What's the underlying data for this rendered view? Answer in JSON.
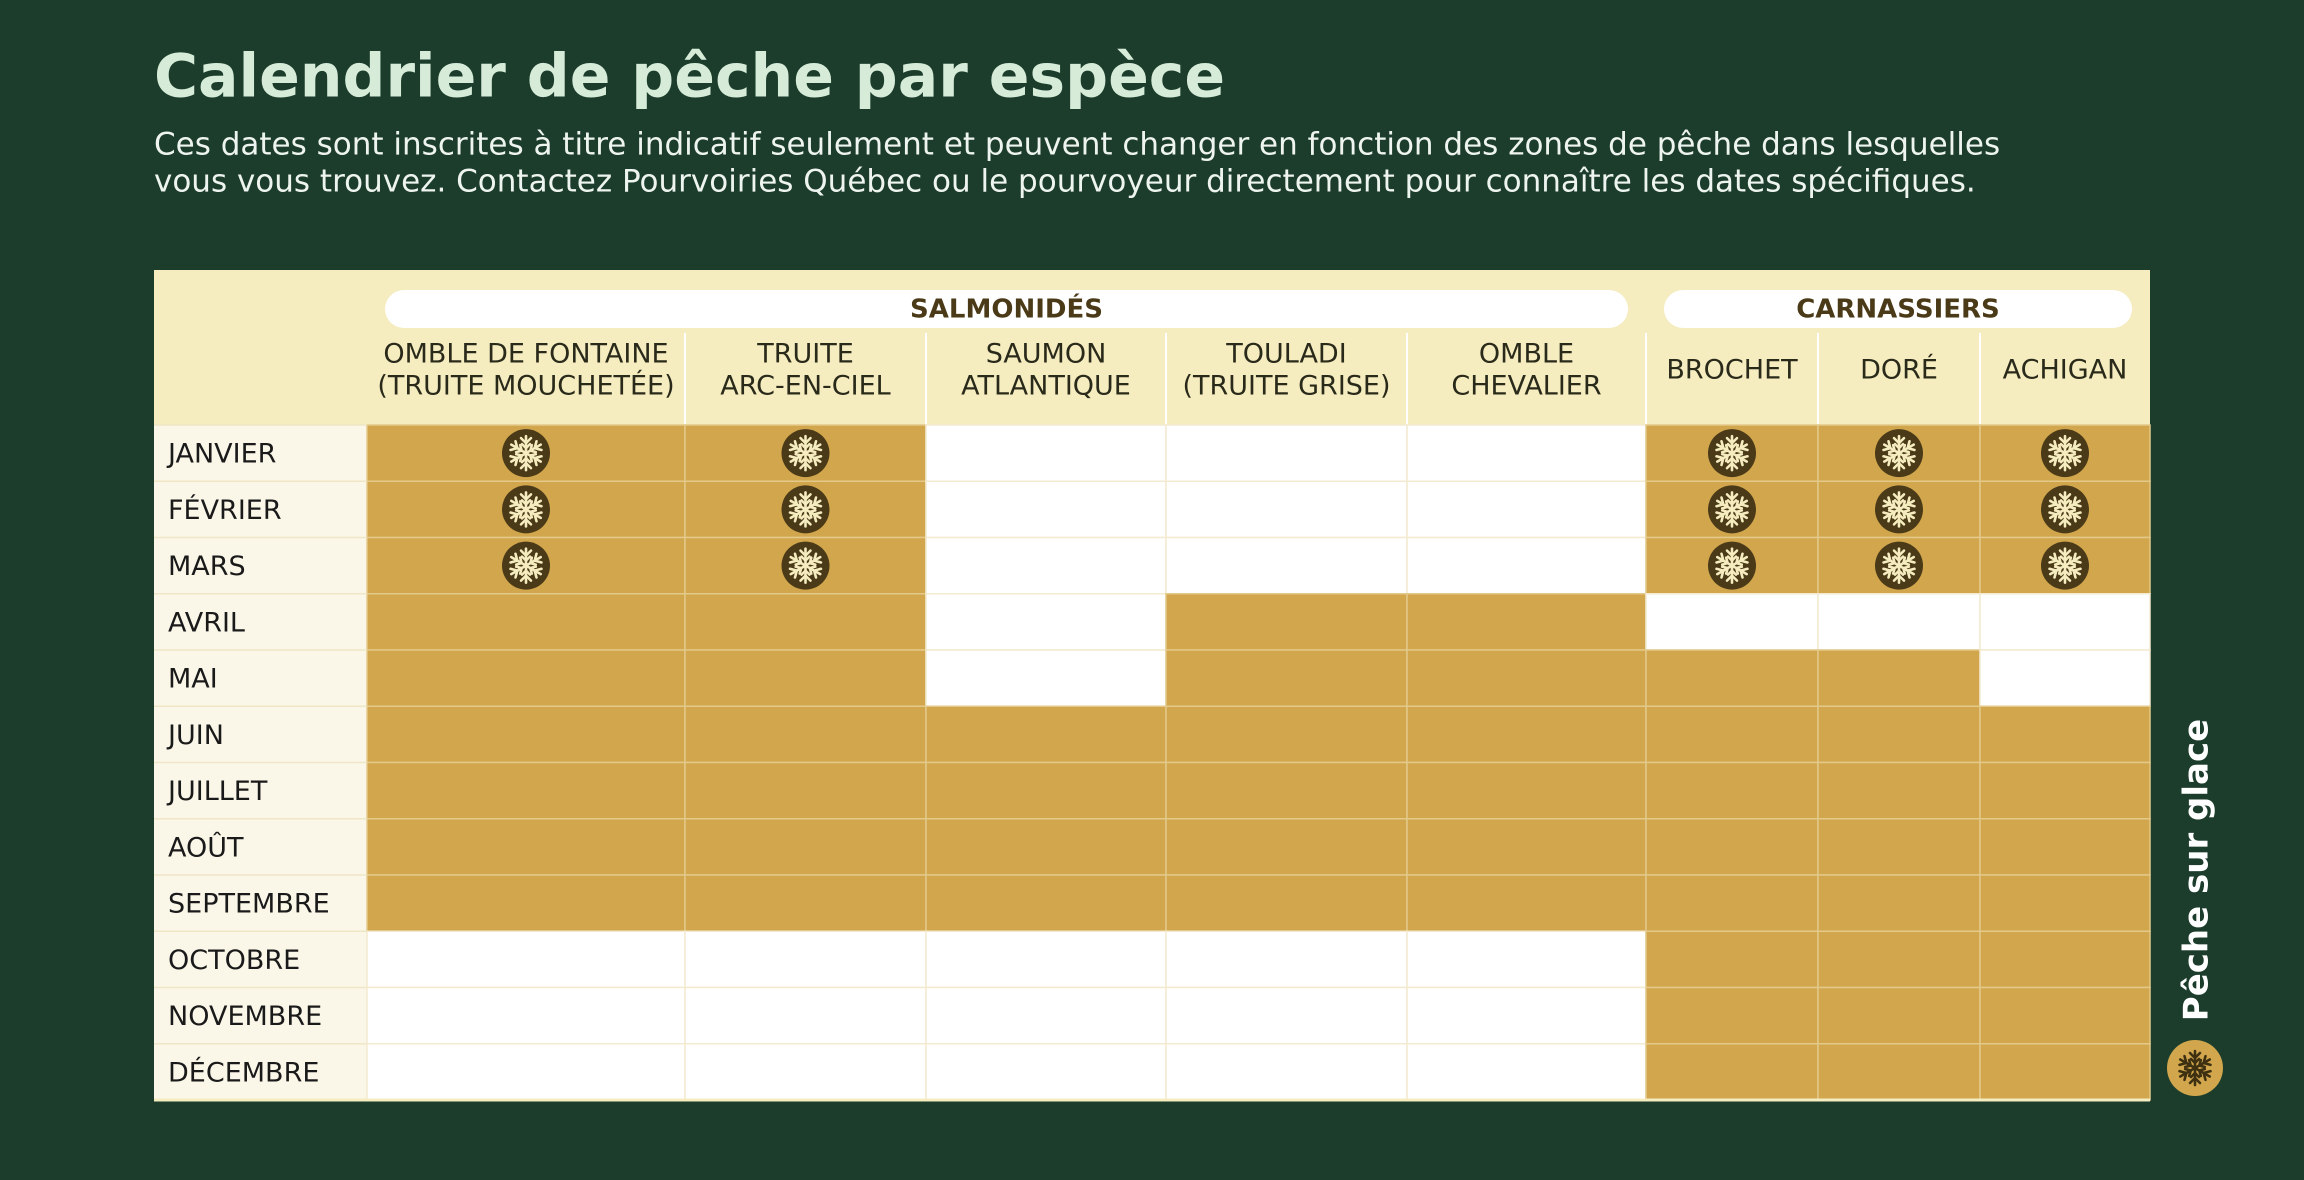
{
  "header": {
    "title": "Calendrier de pêche par espèce",
    "description": [
      "Ces dates sont inscrites à titre indicatif seulement et peuvent changer en fonction des zones de pêche dans lesquelles",
      "vous vous trouvez. Contactez Pourvoiries Québec ou le pourvoyeur directement pour connaître les dates spécifiques."
    ]
  },
  "table": {
    "groups": [
      {
        "label": "SALMONIDÉS",
        "span": 5
      },
      {
        "label": "CARNASSIERS",
        "span": 3
      }
    ],
    "columns": [
      [
        "OMBLE DE FONTAINE",
        "(TRUITE MOUCHETÉE)"
      ],
      [
        "TRUITE",
        "ARC-EN-CIEL"
      ],
      [
        "SAUMON",
        "ATLANTIQUE"
      ],
      [
        "TOULADI",
        "(TRUITE GRISE)"
      ],
      [
        "OMBLE",
        "CHEVALIER"
      ],
      [
        "BROCHET"
      ],
      [
        "DORÉ"
      ],
      [
        "ACHIGAN"
      ]
    ],
    "rows": [
      {
        "month": "JANVIER",
        "cells": [
          2,
          2,
          0,
          0,
          0,
          2,
          2,
          2
        ]
      },
      {
        "month": "FÉVRIER",
        "cells": [
          2,
          2,
          0,
          0,
          0,
          2,
          2,
          2
        ]
      },
      {
        "month": "MARS",
        "cells": [
          2,
          2,
          0,
          0,
          0,
          2,
          2,
          2
        ]
      },
      {
        "month": "AVRIL",
        "cells": [
          1,
          1,
          0,
          1,
          1,
          0,
          0,
          0
        ]
      },
      {
        "month": "MAI",
        "cells": [
          1,
          1,
          0,
          1,
          1,
          1,
          1,
          0
        ]
      },
      {
        "month": "JUIN",
        "cells": [
          1,
          1,
          1,
          1,
          1,
          1,
          1,
          1
        ]
      },
      {
        "month": "JUILLET",
        "cells": [
          1,
          1,
          1,
          1,
          1,
          1,
          1,
          1
        ]
      },
      {
        "month": "AOÛT",
        "cells": [
          1,
          1,
          1,
          1,
          1,
          1,
          1,
          1
        ]
      },
      {
        "month": "SEPTEMBRE",
        "cells": [
          1,
          1,
          1,
          1,
          1,
          1,
          1,
          1
        ]
      },
      {
        "month": "OCTOBRE",
        "cells": [
          0,
          0,
          0,
          0,
          0,
          1,
          1,
          1
        ]
      },
      {
        "month": "NOVEMBRE",
        "cells": [
          0,
          0,
          0,
          0,
          0,
          1,
          1,
          1
        ]
      },
      {
        "month": "DÉCEMBRE",
        "cells": [
          0,
          0,
          0,
          0,
          0,
          1,
          1,
          1
        ]
      }
    ]
  },
  "legend": {
    "label": "Pêche sur glace"
  }
}
